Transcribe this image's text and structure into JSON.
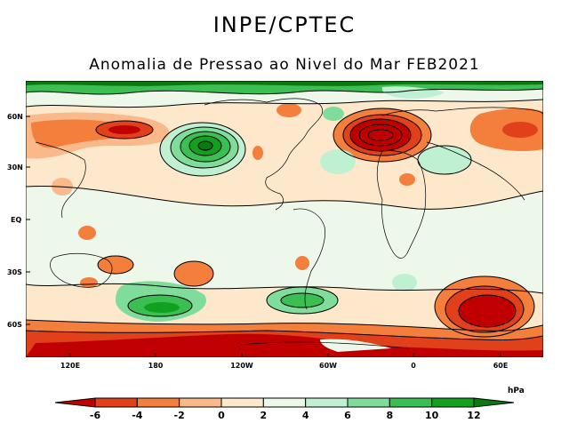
{
  "header": {
    "agency": "INPE/CPTEC",
    "title": "Anomalia de Pressao ao Nivel do Mar FEB2021"
  },
  "axes": {
    "lat_labels": [
      "60N",
      "30N",
      "EQ",
      "30S",
      "60S"
    ],
    "lon_labels": [
      "120E",
      "180",
      "120W",
      "60W",
      "0",
      "60E"
    ]
  },
  "colorbar": {
    "unit": "hPa",
    "ticks": [
      "-6",
      "-4",
      "-2",
      "0",
      "2",
      "4",
      "6",
      "8",
      "10",
      "12"
    ],
    "colors": [
      "#c00000",
      "#e0401a",
      "#f47e3c",
      "#f9b98a",
      "#fde8cc",
      "#eef8ea",
      "#bff0d2",
      "#7fdc9a",
      "#3cbf52",
      "#13a01f",
      "#0a7a10"
    ]
  }
}
